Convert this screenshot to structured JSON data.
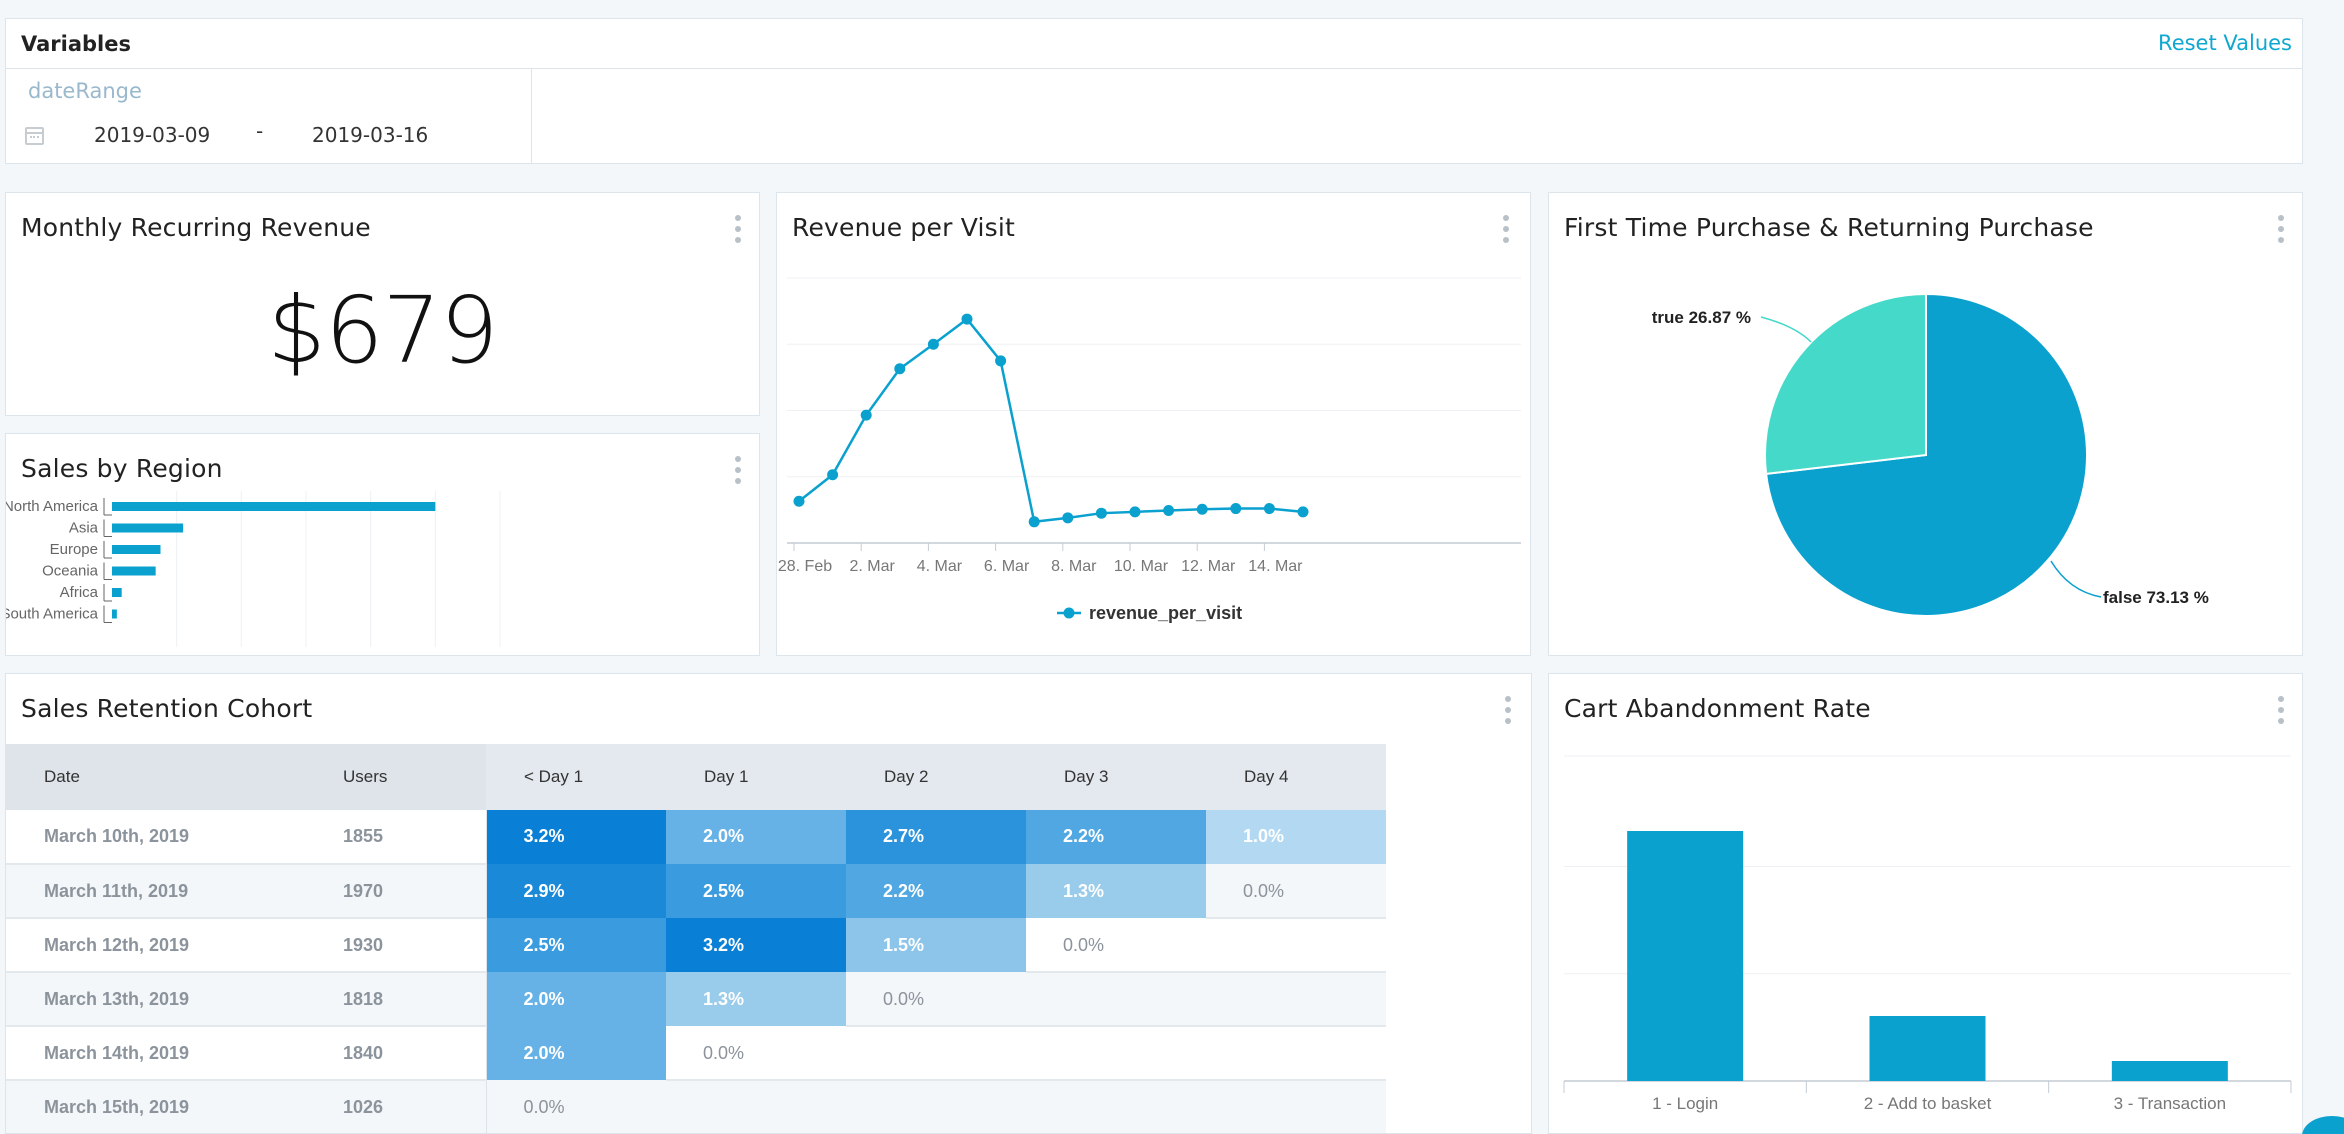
{
  "variables": {
    "title": "Variables",
    "reset_label": "Reset Values",
    "date_range": {
      "name": "dateRange",
      "from": "2019-03-09",
      "separator": "-",
      "to": "2019-03-16"
    }
  },
  "mrr": {
    "title": "Monthly Recurring Revenue",
    "value": "$679"
  },
  "colors": {
    "accent": "#0aa1cf",
    "teal": "#44d9c8",
    "link": "#0fa8d1"
  },
  "chart_data": [
    {
      "id": "sales_by_region",
      "type": "bar",
      "orientation": "horizontal",
      "title": "Sales by Region",
      "categories": [
        "North America",
        "Asia",
        "Europe",
        "Oceania",
        "Africa",
        "South America"
      ],
      "values": [
        100,
        22,
        15,
        13.5,
        3,
        1.5
      ],
      "xlim": [
        0,
        120
      ],
      "grid": true
    },
    {
      "id": "revenue_per_visit",
      "type": "line",
      "title": "Revenue per Visit",
      "x_ticks": [
        "28. Feb",
        "2. Mar",
        "4. Mar",
        "6. Mar",
        "8. Mar",
        "10. Mar",
        "12. Mar",
        "14. Mar"
      ],
      "x": [
        "2019-02-28",
        "2019-03-01",
        "2019-03-02",
        "2019-03-03",
        "2019-03-04",
        "2019-03-05",
        "2019-03-06",
        "2019-03-07",
        "2019-03-08",
        "2019-03-09",
        "2019-03-10",
        "2019-03-11",
        "2019-03-12",
        "2019-03-13",
        "2019-03-14",
        "2019-03-15"
      ],
      "series": [
        {
          "name": "revenue_per_visit",
          "values": [
            6.3,
            10.3,
            19.3,
            26.3,
            30.0,
            33.8,
            27.5,
            3.2,
            3.8,
            4.5,
            4.7,
            4.9,
            5.1,
            5.2,
            5.2,
            4.7
          ]
        }
      ],
      "ylim": [
        0,
        40
      ],
      "grid": true,
      "legend": "bottom"
    },
    {
      "id": "first_time_vs_returning",
      "type": "pie",
      "title": "First Time Purchase & Returning Purchase",
      "slices": [
        {
          "label": "true",
          "percent": 26.87,
          "display": "26.87 %",
          "color": "#44d9c8"
        },
        {
          "label": "false",
          "percent": 73.13,
          "display": "73.13 %",
          "color": "#0aa1cf"
        }
      ]
    },
    {
      "id": "cart_abandonment",
      "type": "bar",
      "title": "Cart Abandonment Rate",
      "categories": [
        "1 - Login",
        "2 - Add to basket",
        "3 - Transaction"
      ],
      "values": [
        100,
        26,
        8
      ],
      "ylim": [
        0,
        130
      ],
      "grid": true
    }
  ],
  "cohort": {
    "title": "Sales Retention Cohort",
    "columns": [
      "Date",
      "Users",
      "< Day 1",
      "Day 1",
      "Day 2",
      "Day 3",
      "Day 4"
    ],
    "rows": [
      {
        "date": "March 10th, 2019",
        "users": "1855",
        "cells": [
          "3.2%",
          "2.0%",
          "2.7%",
          "2.2%",
          "1.0%"
        ]
      },
      {
        "date": "March 11th, 2019",
        "users": "1970",
        "cells": [
          "2.9%",
          "2.5%",
          "2.2%",
          "1.3%",
          "0.0%"
        ]
      },
      {
        "date": "March 12th, 2019",
        "users": "1930",
        "cells": [
          "2.5%",
          "3.2%",
          "1.5%",
          "0.0%"
        ]
      },
      {
        "date": "March 13th, 2019",
        "users": "1818",
        "cells": [
          "2.0%",
          "1.3%",
          "0.0%"
        ]
      },
      {
        "date": "March 14th, 2019",
        "users": "1840",
        "cells": [
          "2.0%",
          "0.0%"
        ]
      },
      {
        "date": "March 15th, 2019",
        "users": "1026",
        "cells": [
          "0.0%"
        ]
      }
    ]
  }
}
